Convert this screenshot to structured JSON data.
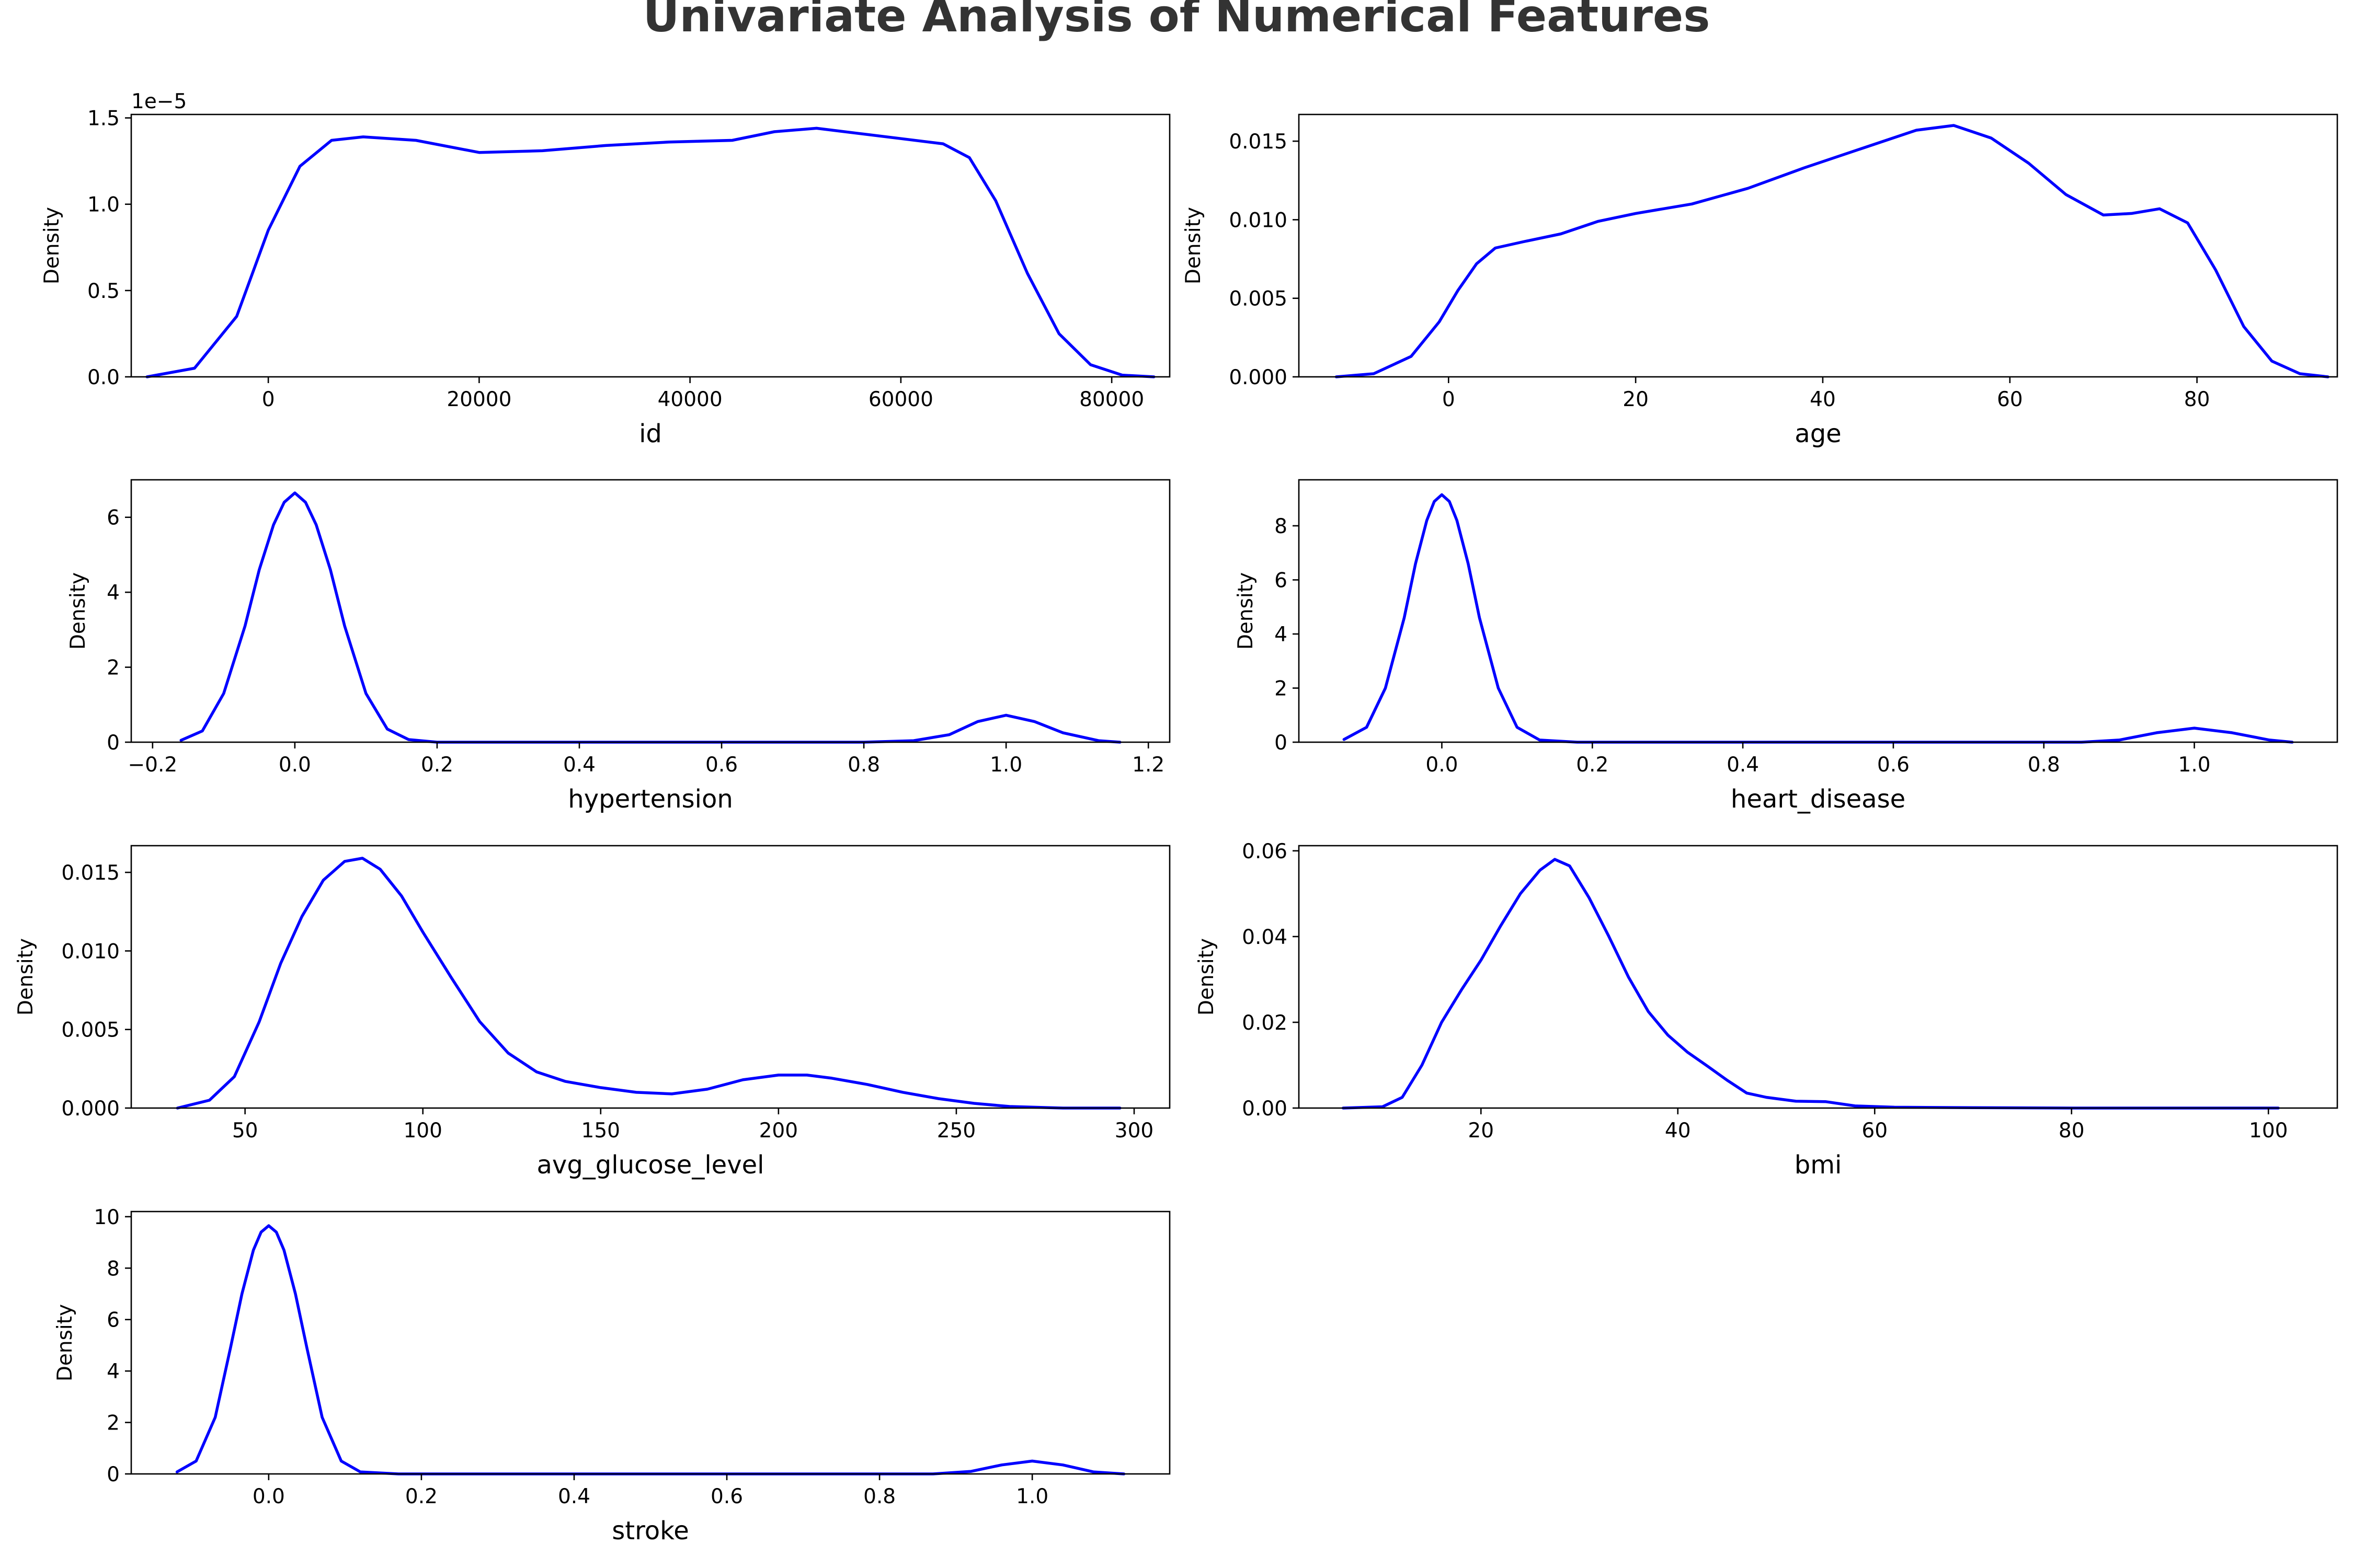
{
  "title": "Univariate Analysis of Numerical Features",
  "colors": {
    "line": "#0000ff",
    "title": "#333333",
    "axes": "#000000"
  },
  "chart_data": [
    {
      "type": "line",
      "xlabel": "id",
      "ylabel": "Density",
      "xlim": [
        -13000,
        85500
      ],
      "ylim": [
        0,
        1.52
      ],
      "offset_label": "1e−5",
      "xticks": [
        0,
        20000,
        40000,
        60000,
        80000
      ],
      "xtick_labels": [
        "0",
        "20000",
        "40000",
        "60000",
        "80000"
      ],
      "yticks": [
        0,
        0.5,
        1.0,
        1.5
      ],
      "ytick_labels": [
        "0.0",
        "0.5",
        "1.0",
        "1.5"
      ],
      "series": [
        {
          "x": [
            -11500,
            -7000,
            -3000,
            0,
            3000,
            6000,
            9000,
            14000,
            20000,
            26000,
            32000,
            38000,
            44000,
            48000,
            52000,
            56000,
            60000,
            64000,
            66500,
            69000,
            72000,
            75000,
            78000,
            81000,
            84000
          ],
          "y": [
            0.0,
            0.05,
            0.35,
            0.85,
            1.22,
            1.37,
            1.39,
            1.37,
            1.3,
            1.31,
            1.34,
            1.36,
            1.37,
            1.42,
            1.44,
            1.41,
            1.38,
            1.35,
            1.27,
            1.02,
            0.6,
            0.25,
            0.07,
            0.01,
            0.0
          ]
        }
      ]
    },
    {
      "type": "line",
      "xlabel": "age",
      "ylabel": "Density",
      "xlim": [
        -16,
        95
      ],
      "ylim": [
        0,
        0.0167
      ],
      "xticks": [
        0,
        20,
        40,
        60,
        80
      ],
      "xtick_labels": [
        "0",
        "20",
        "40",
        "60",
        "80"
      ],
      "yticks": [
        0,
        0.005,
        0.01,
        0.015
      ],
      "ytick_labels": [
        "0.000",
        "0.005",
        "0.010",
        "0.015"
      ],
      "series": [
        {
          "x": [
            -12,
            -8,
            -4,
            -1,
            1,
            3,
            5,
            8,
            12,
            16,
            20,
            26,
            32,
            38,
            44,
            50,
            54,
            58,
            62,
            66,
            70,
            73,
            76,
            79,
            82,
            85,
            88,
            91,
            94
          ],
          "y": [
            0.0,
            0.0002,
            0.0013,
            0.0035,
            0.0055,
            0.0072,
            0.0082,
            0.0086,
            0.0091,
            0.0099,
            0.0104,
            0.011,
            0.012,
            0.0133,
            0.0145,
            0.0157,
            0.016,
            0.0152,
            0.0136,
            0.0116,
            0.0103,
            0.0104,
            0.0107,
            0.0098,
            0.0068,
            0.0032,
            0.001,
            0.0002,
            0.0
          ]
        }
      ]
    },
    {
      "type": "line",
      "xlabel": "hypertension",
      "ylabel": "Density",
      "xlim": [
        -0.23,
        1.23
      ],
      "ylim": [
        0,
        7.0
      ],
      "xticks": [
        -0.2,
        0.0,
        0.2,
        0.4,
        0.6,
        0.8,
        1.0,
        1.2
      ],
      "xtick_labels": [
        "−0.2",
        "0.0",
        "0.2",
        "0.4",
        "0.6",
        "0.8",
        "1.0",
        "1.2"
      ],
      "yticks": [
        0,
        2,
        4,
        6
      ],
      "ytick_labels": [
        "0",
        "2",
        "4",
        "6"
      ],
      "series": [
        {
          "x": [
            -0.16,
            -0.13,
            -0.1,
            -0.07,
            -0.05,
            -0.03,
            -0.015,
            0.0,
            0.015,
            0.03,
            0.05,
            0.07,
            0.1,
            0.13,
            0.16,
            0.2,
            0.5,
            0.8,
            0.87,
            0.92,
            0.96,
            1.0,
            1.04,
            1.08,
            1.13,
            1.16
          ],
          "y": [
            0.05,
            0.3,
            1.3,
            3.1,
            4.6,
            5.8,
            6.4,
            6.65,
            6.4,
            5.8,
            4.6,
            3.1,
            1.3,
            0.35,
            0.07,
            0.0,
            0.0,
            0.0,
            0.04,
            0.2,
            0.55,
            0.72,
            0.55,
            0.25,
            0.04,
            0.0
          ]
        }
      ]
    },
    {
      "type": "line",
      "xlabel": "heart_disease",
      "ylabel": "Density",
      "xlim": [
        -0.19,
        1.19
      ],
      "ylim": [
        0,
        9.7
      ],
      "xticks": [
        0.0,
        0.2,
        0.4,
        0.6,
        0.8,
        1.0
      ],
      "xtick_labels": [
        "0.0",
        "0.2",
        "0.4",
        "0.6",
        "0.8",
        "1.0"
      ],
      "yticks": [
        0,
        2,
        4,
        6,
        8
      ],
      "ytick_labels": [
        "0",
        "2",
        "4",
        "6",
        "8"
      ],
      "series": [
        {
          "x": [
            -0.13,
            -0.1,
            -0.075,
            -0.05,
            -0.035,
            -0.02,
            -0.01,
            0.0,
            0.01,
            0.02,
            0.035,
            0.05,
            0.075,
            0.1,
            0.13,
            0.18,
            0.5,
            0.85,
            0.9,
            0.95,
            1.0,
            1.05,
            1.1,
            1.13
          ],
          "y": [
            0.1,
            0.55,
            2.0,
            4.6,
            6.6,
            8.2,
            8.9,
            9.15,
            8.9,
            8.2,
            6.6,
            4.6,
            2.0,
            0.55,
            0.08,
            0.0,
            0.0,
            0.0,
            0.08,
            0.35,
            0.52,
            0.35,
            0.08,
            0.0
          ]
        }
      ]
    },
    {
      "type": "line",
      "xlabel": "avg_glucose_level",
      "ylabel": "Density",
      "xlim": [
        18,
        310
      ],
      "ylim": [
        0,
        0.0167
      ],
      "xticks": [
        50,
        100,
        150,
        200,
        250,
        300
      ],
      "xtick_labels": [
        "50",
        "100",
        "150",
        "200",
        "250",
        "300"
      ],
      "yticks": [
        0,
        0.005,
        0.01,
        0.015
      ],
      "ytick_labels": [
        "0.000",
        "0.005",
        "0.010",
        "0.015"
      ],
      "series": [
        {
          "x": [
            31,
            40,
            47,
            54,
            60,
            66,
            72,
            78,
            83,
            88,
            94,
            100,
            108,
            116,
            124,
            132,
            140,
            150,
            160,
            170,
            180,
            190,
            200,
            208,
            215,
            225,
            235,
            245,
            255,
            265,
            280,
            296
          ],
          "y": [
            0.0,
            0.0005,
            0.002,
            0.0055,
            0.0092,
            0.0122,
            0.0145,
            0.0157,
            0.0159,
            0.0152,
            0.0135,
            0.0112,
            0.0083,
            0.0055,
            0.0035,
            0.0023,
            0.0017,
            0.0013,
            0.001,
            0.0009,
            0.0012,
            0.0018,
            0.0021,
            0.0021,
            0.0019,
            0.0015,
            0.001,
            0.0006,
            0.0003,
            0.0001,
            0.0,
            0.0
          ]
        }
      ]
    },
    {
      "type": "line",
      "xlabel": "bmi",
      "ylabel": "Density",
      "xlim": [
        1.5,
        107
      ],
      "ylim": [
        0,
        0.0612
      ],
      "xticks": [
        20,
        40,
        60,
        80,
        100
      ],
      "xtick_labels": [
        "20",
        "40",
        "60",
        "80",
        "100"
      ],
      "yticks": [
        0,
        0.02,
        0.04,
        0.06
      ],
      "ytick_labels": [
        "0.00",
        "0.02",
        "0.04",
        "0.06"
      ],
      "series": [
        {
          "x": [
            6,
            10,
            12,
            14,
            16,
            18,
            20,
            22,
            24,
            26,
            27.5,
            29,
            31,
            33,
            35,
            37,
            39,
            41,
            43,
            45,
            47,
            49,
            52,
            55,
            58,
            62,
            70,
            80,
            90,
            101
          ],
          "y": [
            0.0,
            0.0003,
            0.0025,
            0.01,
            0.02,
            0.0275,
            0.0345,
            0.0425,
            0.05,
            0.0555,
            0.058,
            0.0565,
            0.049,
            0.04,
            0.0305,
            0.0225,
            0.017,
            0.013,
            0.0098,
            0.0065,
            0.0035,
            0.0025,
            0.0016,
            0.0015,
            0.0005,
            0.0002,
            0.0001,
            0.0,
            0.0,
            0.0
          ]
        }
      ]
    },
    {
      "type": "line",
      "xlabel": "stroke",
      "ylabel": "Density",
      "xlim": [
        -0.18,
        1.18
      ],
      "ylim": [
        0,
        10.2
      ],
      "xticks": [
        0.0,
        0.2,
        0.4,
        0.6,
        0.8,
        1.0
      ],
      "xtick_labels": [
        "0.0",
        "0.2",
        "0.4",
        "0.6",
        "0.8",
        "1.0"
      ],
      "yticks": [
        0,
        2,
        4,
        6,
        8,
        10
      ],
      "ytick_labels": [
        "0",
        "2",
        "4",
        "6",
        "8",
        "10"
      ],
      "series": [
        {
          "x": [
            -0.12,
            -0.095,
            -0.07,
            -0.05,
            -0.035,
            -0.02,
            -0.01,
            0.0,
            0.01,
            0.02,
            0.035,
            0.05,
            0.07,
            0.095,
            0.12,
            0.17,
            0.5,
            0.87,
            0.92,
            0.96,
            1.0,
            1.04,
            1.08,
            1.12
          ],
          "y": [
            0.08,
            0.5,
            2.2,
            4.9,
            7.0,
            8.7,
            9.4,
            9.65,
            9.4,
            8.7,
            7.0,
            4.9,
            2.2,
            0.5,
            0.08,
            0.0,
            0.0,
            0.0,
            0.1,
            0.35,
            0.5,
            0.35,
            0.08,
            0.0
          ]
        }
      ]
    }
  ]
}
